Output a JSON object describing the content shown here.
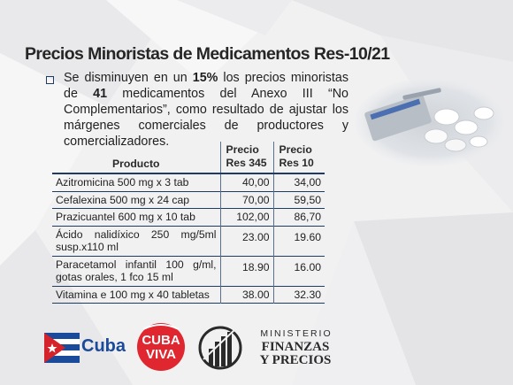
{
  "slide": {
    "title": "Precios Minoristas de Medicamentos Res-10/21"
  },
  "bullet": {
    "text_before_pct": "Se disminuyen en un ",
    "percent": "15%",
    "text_middle": " los precios minoristas de ",
    "count": "41",
    "text_after": " medicamentos del Anexo III “No Complementarios”, como resultado de ajustar los márgenes comerciales de productores y comercializadores."
  },
  "table": {
    "headers": {
      "product": "Producto",
      "price_345": "Precio Res 345",
      "price_10": "Precio Res 10"
    },
    "rows": [
      {
        "product": "Azitromicina 500 mg x 3 tab",
        "p345": "40,00",
        "p10": "34,00"
      },
      {
        "product": "Cefalexina 500 mg x 24 cap",
        "p345": "70,00",
        "p10": "59,50"
      },
      {
        "product": "Prazicuantel 600 mg x 10 tab",
        "p345": "102,00",
        "p10": "86,70"
      },
      {
        "product": "Ácido nalidíxico 250 mg/5ml susp.x110 ml",
        "p345": "23.00",
        "p10": "19.60"
      },
      {
        "product": "Paracetamol infantil 100 g/ml, gotas orales, 1 fco 15 ml",
        "p345": "18.90",
        "p10": "16.00"
      },
      {
        "product": "Vitamina e 100 mg x 40 tabletas",
        "p345": "38.00",
        "p10": "32.30"
      }
    ]
  },
  "logos": {
    "cuba": "Cuba",
    "cuba_viva_line1": "CUBA",
    "cuba_viva_line2": "VIVA",
    "ministerio_line1": "MINISTERIO",
    "ministerio_line2": "FINANZAS",
    "ministerio_line3": "Y PRECIOS"
  },
  "colors": {
    "table_rule": "#1f3b63",
    "cuba_blue": "#1a4a9a",
    "cuba_red": "#d4232a",
    "viva_red": "#e0262f"
  }
}
